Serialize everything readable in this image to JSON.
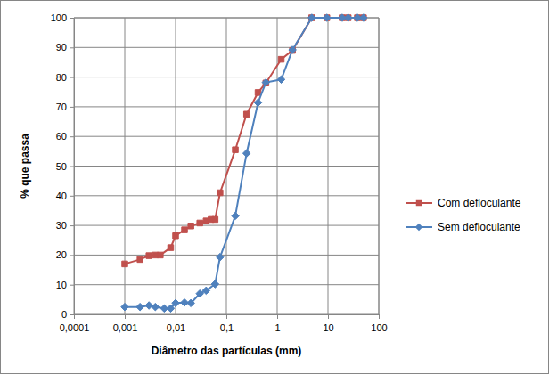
{
  "chart_data": {
    "type": "line",
    "x_label": "Diâmetro das partículas (mm)",
    "y_label": "% que passa",
    "log": "x",
    "grid": true,
    "legend": "right",
    "xlim": [
      0.0001,
      100
    ],
    "xticks": [
      {
        "value": 0.0001,
        "label": "0,0001"
      },
      {
        "value": 0.001,
        "label": "0,001"
      },
      {
        "value": 0.01,
        "label": "0,01"
      },
      {
        "value": 0.1,
        "label": "0,1"
      },
      1,
      10,
      100
    ],
    "ylim": [
      0,
      100
    ],
    "yticks": [
      0,
      10,
      20,
      30,
      40,
      50,
      60,
      70,
      80,
      90,
      100
    ],
    "series": [
      {
        "name": "Com defloculante",
        "color": "#c0504d",
        "marker": "square",
        "line_style": "solid",
        "x": [
          0.001,
          0.002,
          0.003,
          0.004,
          0.005,
          0.008,
          0.01,
          0.015,
          0.02,
          0.03,
          0.04,
          0.05,
          0.06,
          0.075,
          0.15,
          0.25,
          0.42,
          0.6,
          1.2,
          2,
          4.8,
          9.5,
          19,
          25,
          38,
          50
        ],
        "values": [
          17,
          18.5,
          19.8,
          20,
          20,
          22.5,
          26.5,
          28.5,
          29.8,
          30.8,
          31.5,
          32,
          32,
          41,
          55.5,
          67.5,
          74.8,
          78,
          86,
          89,
          100,
          100,
          100,
          100,
          100,
          100
        ]
      },
      {
        "name": "Sem defloculante",
        "color": "#4f81bd",
        "marker": "diamond",
        "line_style": "solid",
        "x": [
          0.001,
          0.002,
          0.003,
          0.004,
          0.006,
          0.008,
          0.01,
          0.015,
          0.02,
          0.03,
          0.04,
          0.06,
          0.075,
          0.15,
          0.25,
          0.42,
          0.6,
          1.2,
          2,
          4.8,
          9.5,
          19,
          25,
          38,
          50
        ],
        "values": [
          2.5,
          2.5,
          3,
          2.5,
          2,
          2,
          3.8,
          4,
          3.8,
          7,
          8,
          10.2,
          19.3,
          33.2,
          54.3,
          71.4,
          78.2,
          79.2,
          89.2,
          100,
          100,
          100,
          100,
          100,
          100
        ]
      }
    ]
  }
}
